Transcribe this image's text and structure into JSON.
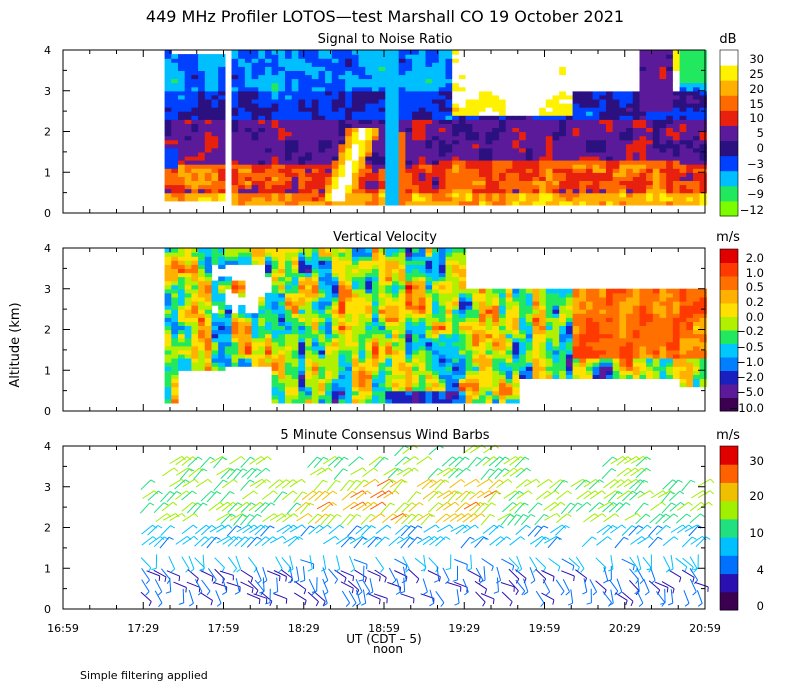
{
  "title": "449 MHz Profiler LOTOS—test Marshall CO 19 October 2021",
  "ylabel": "Altitude (km)",
  "xlabel": "UT  (CDT – 5)",
  "noon_label": "noon",
  "footer": "Simple filtering applied",
  "colors": {
    "snr": [
      "#7cfc00",
      "#22e860",
      "#00bfff",
      "#0040ff",
      "#2b1080",
      "#5a1a9a",
      "#e8200e",
      "#ff6a00",
      "#ffb000",
      "#fff200",
      "#ffffff"
    ],
    "vv": [
      "#3c0050",
      "#5a1a9a",
      "#1a20c0",
      "#0080ff",
      "#00c8ff",
      "#22e860",
      "#b0f000",
      "#ffe000",
      "#ffb000",
      "#ff7000",
      "#ff3a00",
      "#e00000"
    ],
    "wind": [
      "#3c0050",
      "#2a10b0",
      "#0070ff",
      "#00c0ff",
      "#20e080",
      "#a0f000",
      "#f0c000",
      "#ff6000",
      "#e00000"
    ]
  },
  "chart_data": [
    {
      "type": "heatmap",
      "title": "Signal to Noise Ratio",
      "unit": "dB",
      "x_ticks": [
        "16:59",
        "17:29",
        "17:59",
        "18:29",
        "18:59",
        "19:29",
        "19:59",
        "20:29",
        "20:59"
      ],
      "y_ticks": [
        "0",
        "1",
        "2",
        "3",
        "4"
      ],
      "ylim": [
        0,
        4
      ],
      "colorbar_labels": [
        "30",
        "25",
        "20",
        "15",
        "10",
        "5",
        "0",
        "−3",
        "−6",
        "−9",
        "−12"
      ],
      "range": [
        -12,
        30
      ]
    },
    {
      "type": "heatmap",
      "title": "Vertical Velocity",
      "unit": "m/s",
      "x_ticks": [
        "16:59",
        "17:29",
        "17:59",
        "18:29",
        "18:59",
        "19:29",
        "19:59",
        "20:29",
        "20:59"
      ],
      "y_ticks": [
        "0",
        "1",
        "2",
        "3",
        "4"
      ],
      "ylim": [
        0,
        4
      ],
      "colorbar_labels": [
        "2.0",
        "1.0",
        "0.5",
        "0.2",
        "0.0",
        "−0.2",
        "−0.5",
        "−1.0",
        "−2.0",
        "−5.0",
        "−10.0"
      ],
      "range": [
        -10,
        2
      ]
    },
    {
      "type": "scatter",
      "title": "5 Minute Consensus Wind Barbs",
      "unit": "m/s",
      "x_ticks": [
        "16:59",
        "17:29",
        "17:59",
        "18:29",
        "18:59",
        "19:29",
        "19:59",
        "20:29",
        "20:59"
      ],
      "y_ticks": [
        "0",
        "1",
        "2",
        "3",
        "4"
      ],
      "ylim": [
        0,
        4
      ],
      "colorbar_labels": [
        "30",
        "20",
        "10",
        "4",
        "0"
      ],
      "range": [
        0,
        34
      ]
    }
  ]
}
